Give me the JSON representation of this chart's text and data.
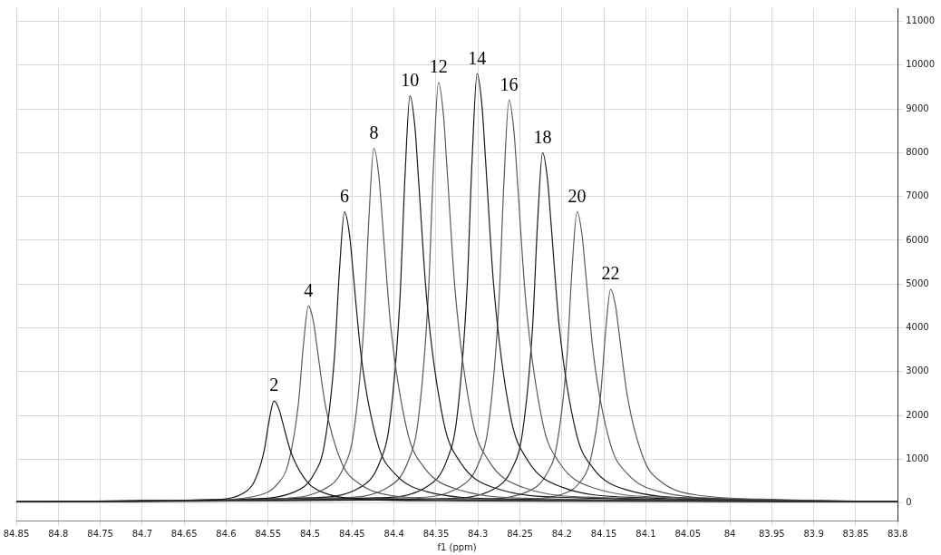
{
  "chart_data": {
    "type": "line",
    "xlabel": "f1 (ppm)",
    "xlim": [
      84.85,
      83.8
    ],
    "xticks": [
      84.85,
      84.8,
      84.75,
      84.7,
      84.65,
      84.6,
      84.55,
      84.5,
      84.45,
      84.4,
      84.35,
      84.3,
      84.25,
      84.2,
      84.15,
      84.1,
      84.05,
      84,
      83.95,
      83.9,
      83.85,
      83.8
    ],
    "ylim": [
      -400,
      11300
    ],
    "yticks": [
      0,
      1000,
      2000,
      3000,
      4000,
      5000,
      6000,
      7000,
      8000,
      9000,
      10000,
      11000
    ],
    "grid": true,
    "legend": false,
    "marker": "none",
    "line_style": "solid",
    "series": [
      {
        "color": "#1a1a1a",
        "x": [
          84.85,
          84.663,
          84.603,
          84.579,
          84.567,
          84.555,
          84.549,
          84.543,
          84.537,
          84.533,
          84.523,
          84.503,
          84.483,
          84.443,
          84.343,
          83.8
        ],
        "values": [
          30,
          50,
          90,
          230,
          470,
          1170,
          1860,
          2330,
          2140,
          1860,
          1170,
          470,
          230,
          90,
          50,
          30
        ]
      },
      {
        "color": "#5a5a5a",
        "x": [
          84.85,
          84.622,
          84.562,
          84.538,
          84.526,
          84.514,
          84.508,
          84.502,
          84.496,
          84.492,
          84.482,
          84.462,
          84.442,
          84.402,
          84.302,
          83.8
        ],
        "values": [
          30,
          70,
          170,
          450,
          900,
          2250,
          3600,
          4500,
          4140,
          3600,
          2250,
          900,
          450,
          170,
          70,
          30
        ]
      },
      {
        "color": "#1a1a1a",
        "x": [
          84.85,
          84.579,
          84.519,
          84.495,
          84.483,
          84.471,
          84.465,
          84.459,
          84.453,
          84.449,
          84.439,
          84.419,
          84.399,
          84.359,
          84.259,
          83.8
        ],
        "values": [
          30,
          90,
          250,
          670,
          1330,
          3330,
          5320,
          6650,
          6120,
          5320,
          3330,
          1330,
          670,
          250,
          90,
          30
        ]
      },
      {
        "color": "#5a5a5a",
        "x": [
          84.85,
          84.544,
          84.484,
          84.46,
          84.448,
          84.436,
          84.43,
          84.424,
          84.418,
          84.414,
          84.404,
          84.384,
          84.364,
          84.324,
          84.224,
          83.8
        ],
        "values": [
          30,
          100,
          310,
          810,
          1620,
          4050,
          6480,
          8100,
          7450,
          6480,
          4050,
          1620,
          810,
          310,
          100,
          30
        ]
      },
      {
        "color": "#1a1a1a",
        "x": [
          84.85,
          84.501,
          84.441,
          84.417,
          84.405,
          84.393,
          84.387,
          84.381,
          84.375,
          84.371,
          84.361,
          84.341,
          84.321,
          84.281,
          84.181,
          83.8
        ],
        "values": [
          30,
          120,
          350,
          930,
          1860,
          4650,
          7440,
          9300,
          8560,
          7440,
          4650,
          1860,
          930,
          350,
          120,
          30
        ]
      },
      {
        "color": "#5a5a5a",
        "x": [
          84.85,
          84.467,
          84.407,
          84.383,
          84.371,
          84.359,
          84.353,
          84.347,
          84.341,
          84.337,
          84.327,
          84.307,
          84.287,
          84.247,
          84.147,
          83.8
        ],
        "values": [
          30,
          120,
          360,
          960,
          1920,
          4800,
          7680,
          9600,
          8830,
          7680,
          4800,
          1920,
          960,
          360,
          120,
          30
        ]
      },
      {
        "color": "#1a1a1a",
        "x": [
          84.85,
          84.421,
          84.361,
          84.337,
          84.325,
          84.313,
          84.307,
          84.301,
          84.295,
          84.291,
          84.281,
          84.261,
          84.241,
          84.201,
          84.101,
          83.8
        ],
        "values": [
          30,
          120,
          370,
          980,
          1960,
          4900,
          7840,
          9800,
          9020,
          7840,
          4900,
          1960,
          980,
          370,
          120,
          30
        ]
      },
      {
        "color": "#5a5a5a",
        "x": [
          84.85,
          84.383,
          84.323,
          84.299,
          84.287,
          84.275,
          84.269,
          84.263,
          84.257,
          84.253,
          84.243,
          84.223,
          84.203,
          84.163,
          84.063,
          83.8
        ],
        "values": [
          30,
          120,
          350,
          920,
          1840,
          4600,
          7360,
          9200,
          8460,
          7360,
          4600,
          1840,
          920,
          350,
          120,
          30
        ]
      },
      {
        "color": "#1a1a1a",
        "x": [
          84.85,
          84.343,
          84.283,
          84.259,
          84.247,
          84.235,
          84.229,
          84.223,
          84.217,
          84.213,
          84.203,
          84.183,
          84.163,
          84.123,
          84.023,
          83.8
        ],
        "values": [
          30,
          100,
          300,
          800,
          1600,
          4000,
          6400,
          8000,
          7360,
          6400,
          4000,
          1600,
          800,
          300,
          100,
          30
        ]
      },
      {
        "color": "#5a5a5a",
        "x": [
          84.85,
          84.302,
          84.242,
          84.218,
          84.206,
          84.194,
          84.188,
          84.182,
          84.176,
          84.172,
          84.162,
          84.142,
          84.122,
          84.082,
          83.982,
          83.8
        ],
        "values": [
          30,
          90,
          250,
          670,
          1330,
          3330,
          5320,
          6650,
          6120,
          5320,
          3330,
          1330,
          670,
          250,
          90,
          30
        ]
      },
      {
        "color": "#5a5a5a",
        "x": [
          84.85,
          84.262,
          84.202,
          84.178,
          84.166,
          84.154,
          84.148,
          84.142,
          84.136,
          84.132,
          84.122,
          84.102,
          84.082,
          84.042,
          83.942,
          83.8
        ],
        "values": [
          30,
          80,
          190,
          490,
          980,
          2440,
          3900,
          4880,
          4490,
          3900,
          2440,
          980,
          490,
          190,
          80,
          30
        ]
      }
    ],
    "annotations": [
      {
        "text": "2",
        "x": 84.543,
        "y": 2330
      },
      {
        "text": "4",
        "x": 84.502,
        "y": 4500
      },
      {
        "text": "6",
        "x": 84.459,
        "y": 6650
      },
      {
        "text": "8",
        "x": 84.424,
        "y": 8100
      },
      {
        "text": "10",
        "x": 84.381,
        "y": 9300
      },
      {
        "text": "12",
        "x": 84.347,
        "y": 9600
      },
      {
        "text": "14",
        "x": 84.301,
        "y": 9800
      },
      {
        "text": "16",
        "x": 84.263,
        "y": 9200
      },
      {
        "text": "18",
        "x": 84.223,
        "y": 8000
      },
      {
        "text": "20",
        "x": 84.182,
        "y": 6650
      },
      {
        "text": "22",
        "x": 84.142,
        "y": 4880
      }
    ]
  }
}
